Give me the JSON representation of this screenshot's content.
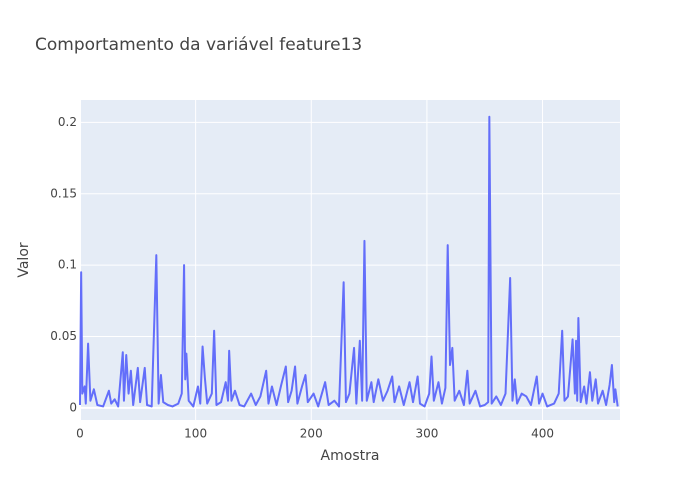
{
  "chart_data": {
    "type": "line",
    "title": "Comportamento da variável feature13",
    "x_label": "Amostra",
    "y_label": "Valor",
    "x": [
      0,
      1,
      2,
      4,
      5,
      7,
      9,
      12,
      15,
      20,
      25,
      27,
      30,
      33,
      37,
      38,
      40,
      42,
      44,
      46,
      50,
      52,
      56,
      58,
      62,
      66,
      68,
      70,
      72,
      76,
      80,
      85,
      88,
      90,
      91,
      92,
      94,
      98,
      102,
      104,
      106,
      108,
      110,
      114,
      116,
      118,
      122,
      126,
      128,
      129,
      131,
      134,
      138,
      142,
      148,
      152,
      156,
      161,
      163,
      166,
      170,
      174,
      178,
      180,
      183,
      186,
      188,
      192,
      195,
      197,
      202,
      206,
      212,
      215,
      220,
      224,
      228,
      230,
      233,
      237,
      239,
      242,
      244,
      246,
      248,
      252,
      254,
      258,
      262,
      266,
      270,
      272,
      276,
      280,
      285,
      288,
      292,
      294,
      298,
      302,
      304,
      306,
      310,
      313,
      316,
      318,
      320,
      322,
      324,
      328,
      332,
      335,
      337,
      342,
      346,
      350,
      353,
      354,
      356,
      360,
      364,
      368,
      372,
      374,
      376,
      378,
      382,
      386,
      390,
      395,
      397,
      400,
      404,
      410,
      414,
      417,
      419,
      422,
      426,
      428,
      429,
      430,
      431,
      433,
      436,
      438,
      441,
      443,
      446,
      448,
      452,
      455,
      458,
      460,
      462,
      463,
      465
    ],
    "series": [
      {
        "color": "#636efa",
        "values": [
          0.002,
          0.095,
          0.01,
          0.015,
          0.003,
          0.045,
          0.005,
          0.013,
          0.002,
          0.001,
          0.012,
          0.003,
          0.006,
          0.001,
          0.039,
          0.005,
          0.037,
          0.01,
          0.026,
          0.002,
          0.028,
          0.004,
          0.028,
          0.002,
          0.001,
          0.107,
          0.003,
          0.023,
          0.004,
          0.002,
          0.001,
          0.003,
          0.01,
          0.1,
          0.02,
          0.038,
          0.005,
          0.001,
          0.015,
          0.003,
          0.043,
          0.021,
          0.003,
          0.01,
          0.054,
          0.002,
          0.004,
          0.018,
          0.005,
          0.04,
          0.005,
          0.012,
          0.002,
          0.001,
          0.01,
          0.002,
          0.008,
          0.026,
          0.003,
          0.015,
          0.002,
          0.016,
          0.029,
          0.004,
          0.012,
          0.029,
          0.003,
          0.015,
          0.023,
          0.004,
          0.01,
          0.001,
          0.018,
          0.002,
          0.005,
          0.001,
          0.088,
          0.004,
          0.01,
          0.042,
          0.003,
          0.047,
          0.005,
          0.117,
          0.005,
          0.018,
          0.004,
          0.02,
          0.005,
          0.012,
          0.022,
          0.004,
          0.015,
          0.002,
          0.018,
          0.004,
          0.022,
          0.003,
          0.001,
          0.01,
          0.036,
          0.005,
          0.018,
          0.003,
          0.014,
          0.114,
          0.03,
          0.042,
          0.005,
          0.012,
          0.002,
          0.026,
          0.003,
          0.012,
          0.001,
          0.002,
          0.004,
          0.204,
          0.003,
          0.008,
          0.002,
          0.01,
          0.091,
          0.005,
          0.02,
          0.003,
          0.01,
          0.008,
          0.002,
          0.022,
          0.003,
          0.01,
          0.001,
          0.003,
          0.01,
          0.054,
          0.005,
          0.008,
          0.048,
          0.01,
          0.047,
          0.005,
          0.063,
          0.004,
          0.015,
          0.003,
          0.025,
          0.005,
          0.02,
          0.003,
          0.012,
          0.002,
          0.016,
          0.03,
          0.004,
          0.013,
          0.001
        ]
      }
    ],
    "xlim": [
      0,
      467
    ],
    "xticks": [
      0,
      100,
      200,
      300,
      400
    ],
    "ylim": [
      -0.0085,
      0.2157
    ],
    "yticks": [
      0,
      0.05,
      0.1,
      0.15,
      0.2
    ],
    "grid": true,
    "background": "#e5ecf6"
  }
}
